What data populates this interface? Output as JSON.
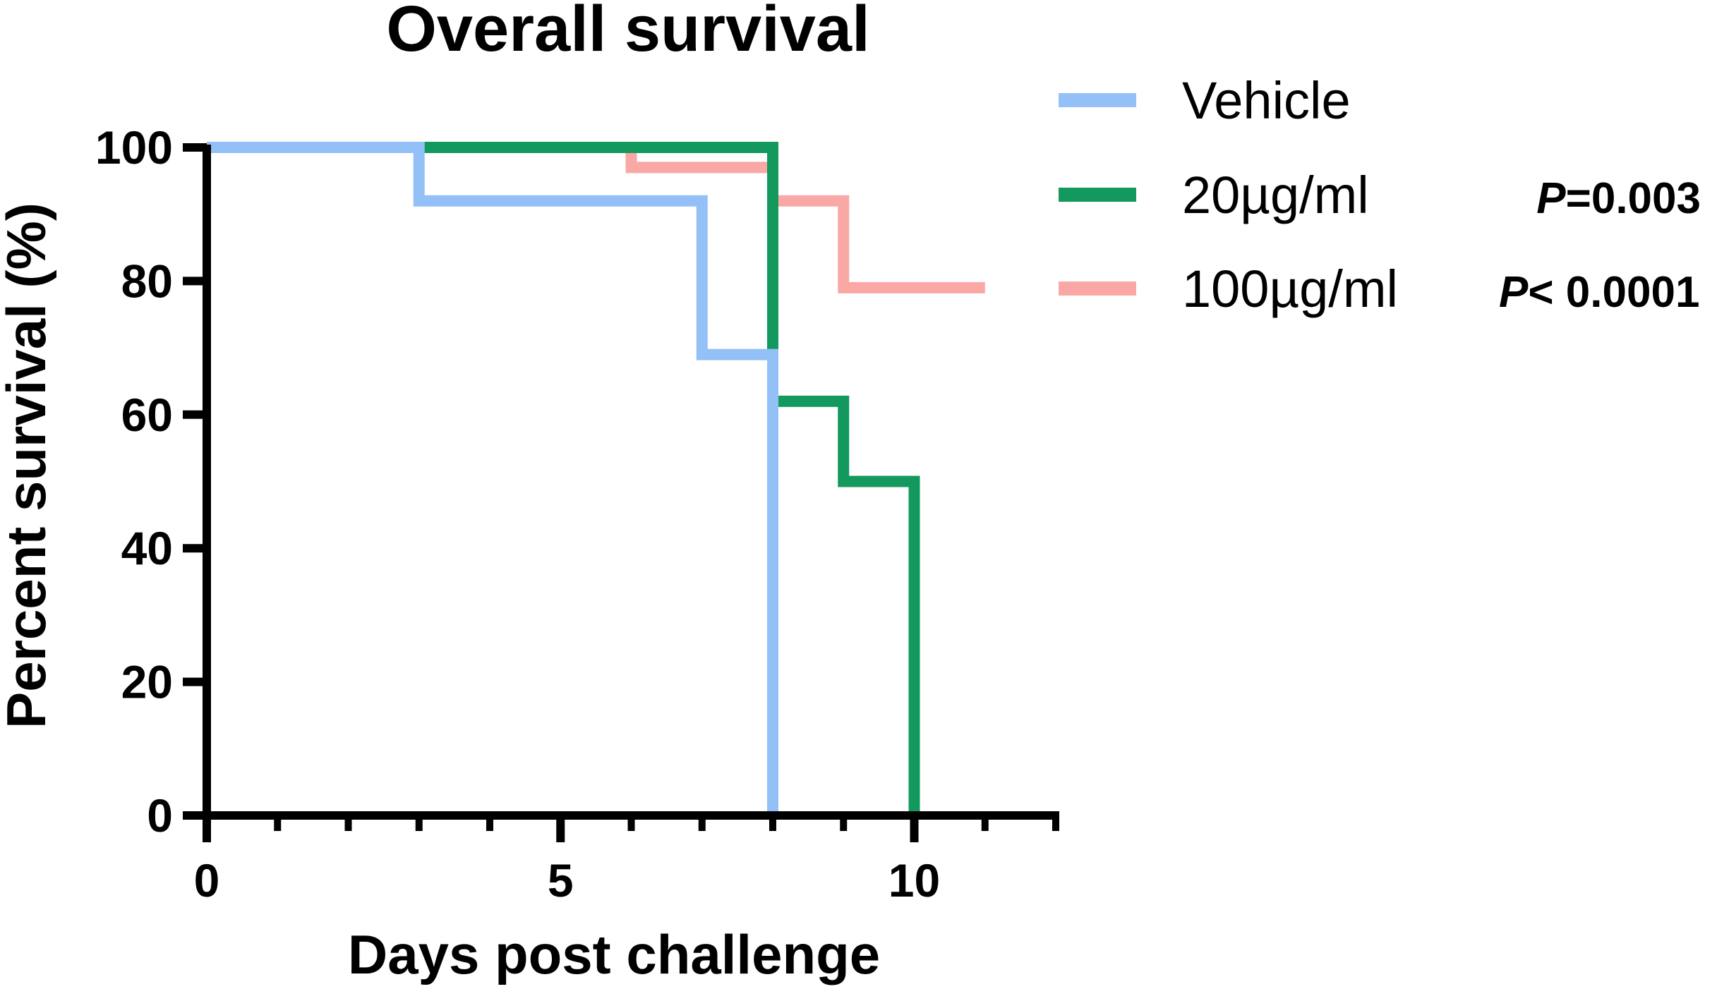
{
  "chart_data": {
    "type": "line",
    "subtype": "kaplan-meier-step",
    "title": "Overall survival",
    "xlabel": "Days post challenge",
    "ylabel": "Percent survival (%)",
    "xlim": [
      0,
      12
    ],
    "ylim": [
      0,
      100
    ],
    "x_ticks": [
      0,
      5,
      10
    ],
    "x_minor_ticks": [
      1,
      2,
      3,
      4,
      6,
      7,
      8,
      9,
      11,
      12
    ],
    "y_ticks": [
      0,
      20,
      40,
      60,
      80,
      100
    ],
    "grid": false,
    "legend_position": "right",
    "series": [
      {
        "name": "Vehicle",
        "color": "#93C1F7",
        "p_value": "",
        "x": [
          0,
          3,
          7,
          8,
          8
        ],
        "y": [
          100,
          92,
          69,
          0,
          0
        ]
      },
      {
        "name": "20µg/ml",
        "color": "#13995E",
        "p_value": "=0.003",
        "x": [
          0,
          8,
          9,
          10,
          10
        ],
        "y": [
          100,
          62,
          50,
          0,
          0
        ]
      },
      {
        "name": "100µg/ml",
        "color": "#F9A8A6",
        "p_value": "< 0.0001",
        "x": [
          0,
          6,
          8,
          9,
          11
        ],
        "y": [
          100,
          97,
          92,
          79,
          79
        ]
      }
    ],
    "p_prefix": "P"
  }
}
